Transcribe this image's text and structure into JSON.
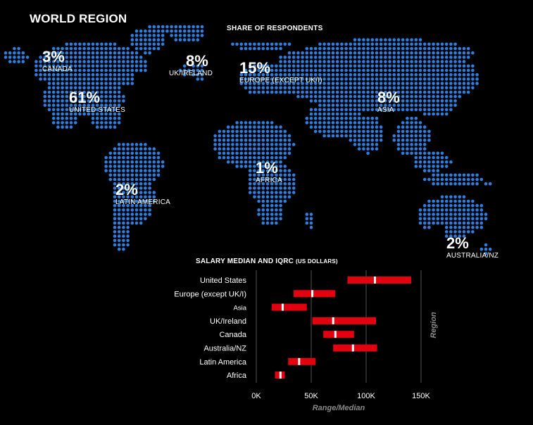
{
  "header": {
    "title": "WORLD REGION",
    "subtitle": "SHARE OF RESPONDENTS"
  },
  "regions": [
    {
      "id": "canada",
      "pct": "3%",
      "name": "CANADA"
    },
    {
      "id": "united-states",
      "pct": "61%",
      "name": "UNITED STATES"
    },
    {
      "id": "uk-ireland",
      "pct": "8%",
      "name": "UK/IRELAND"
    },
    {
      "id": "europe",
      "pct": "15%",
      "name": "EUROPE (EXCEPT UK/I)"
    },
    {
      "id": "asia",
      "pct": "8%",
      "name": "ASIA"
    },
    {
      "id": "africa",
      "pct": "1%",
      "name": "AFRICA"
    },
    {
      "id": "latin-america",
      "pct": "2%",
      "name": "LATIN AMERICA"
    },
    {
      "id": "australia-nz",
      "pct": "2%",
      "name": "AUSTRALIA/NZ"
    }
  ],
  "salary": {
    "title_main": "SALARY MEDIAN AND IQRC",
    "title_unit": "(US DOLLARS)"
  },
  "colors": {
    "dot": "#2e7fe0",
    "bar": "#e3000f",
    "median": "#ffffff",
    "grid": "#555555",
    "text": "#ffffff",
    "axis_title": "#8a8a8a"
  },
  "chart_data": {
    "type": "bar",
    "orientation": "horizontal",
    "title": "SALARY MEDIAN AND IQRC (US DOLLARS)",
    "xlabel": "Range/Median",
    "ylabel": "Region",
    "xlim": [
      0,
      150000
    ],
    "xticks": [
      0,
      50000,
      100000,
      150000
    ],
    "xtick_labels": [
      "0K",
      "50K",
      "100K",
      "150K"
    ],
    "grid": true,
    "categories": [
      "United States",
      "Europe (except UK/I)",
      "Asia",
      "UK/Ireland",
      "Canada",
      "Australia/NZ",
      "Latin America",
      "Africa"
    ],
    "series": [
      {
        "name": "Q1",
        "values": [
          83000,
          34000,
          14000,
          51000,
          61000,
          70000,
          29000,
          17000
        ]
      },
      {
        "name": "Median",
        "values": [
          108000,
          51000,
          24000,
          70000,
          72000,
          88000,
          39000,
          22000
        ]
      },
      {
        "name": "Q3",
        "values": [
          141000,
          72000,
          46000,
          109000,
          89000,
          110000,
          54000,
          26000
        ]
      }
    ]
  }
}
